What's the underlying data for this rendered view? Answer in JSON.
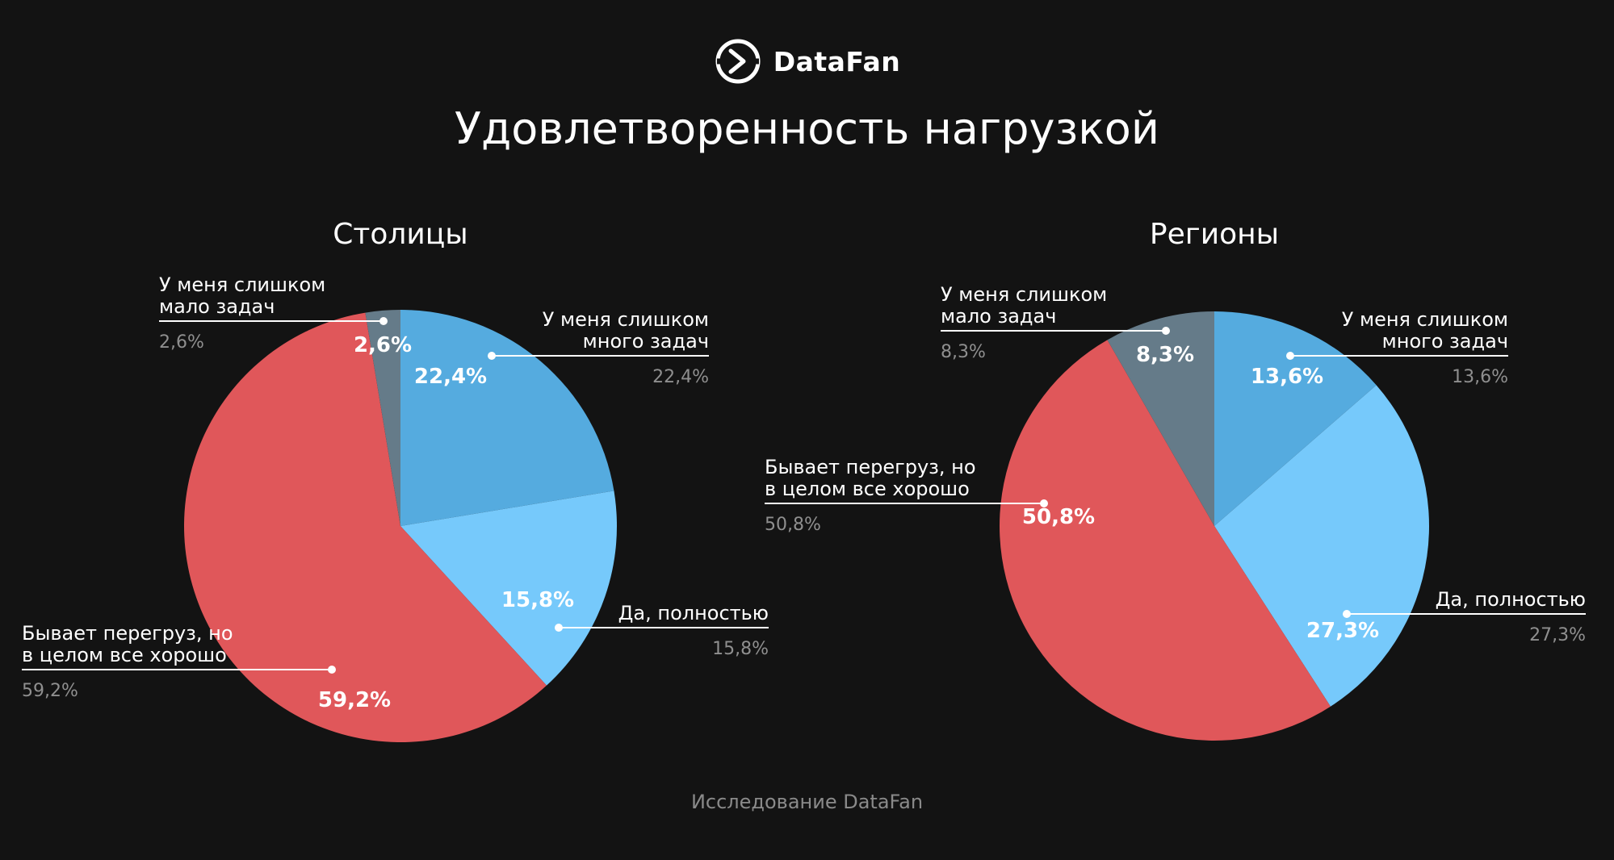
{
  "header": {
    "brand_name": "DataFan",
    "logo_icon": "datafan-logo-icon",
    "title": "Удовлетворенность нагрузкой"
  },
  "footer": {
    "text": "Исследование DataFan"
  },
  "colors": {
    "background": "#131313",
    "too_many_tasks": "#55abdf",
    "fully_satisfied": "#76c9fb",
    "overloaded_but_ok": "#e0575a",
    "too_few_tasks": "#657b89",
    "outside_value_text": "#8f8f8f"
  },
  "chart_data": [
    {
      "type": "pie",
      "title": "Столицы",
      "slices": [
        {
          "label": "У меня слишком много задач",
          "value": 22.4,
          "display": "22,4%",
          "color": "#55abdf"
        },
        {
          "label": "Да, полностью",
          "value": 15.8,
          "display": "15,8%",
          "color": "#76c9fb"
        },
        {
          "label": "Бывает перегруз, но в целом все хорошо",
          "value": 59.2,
          "display": "59,2%",
          "color": "#e0575a"
        },
        {
          "label": "У меня слишком мало задач",
          "value": 2.6,
          "display": "2,6%",
          "color": "#657b89"
        }
      ]
    },
    {
      "type": "pie",
      "title": "Регионы",
      "slices": [
        {
          "label": "У меня слишком много задач",
          "value": 13.6,
          "display": "13,6%",
          "color": "#55abdf"
        },
        {
          "label": "Да, полностью",
          "value": 27.3,
          "display": "27,3%",
          "color": "#76c9fb"
        },
        {
          "label": "Бывает перегруз, но в целом все хорошо",
          "value": 50.8,
          "display": "50,8%",
          "color": "#e0575a"
        },
        {
          "label": "У меня слишком мало задач",
          "value": 8.3,
          "display": "8,3%",
          "color": "#657b89"
        }
      ]
    }
  ]
}
